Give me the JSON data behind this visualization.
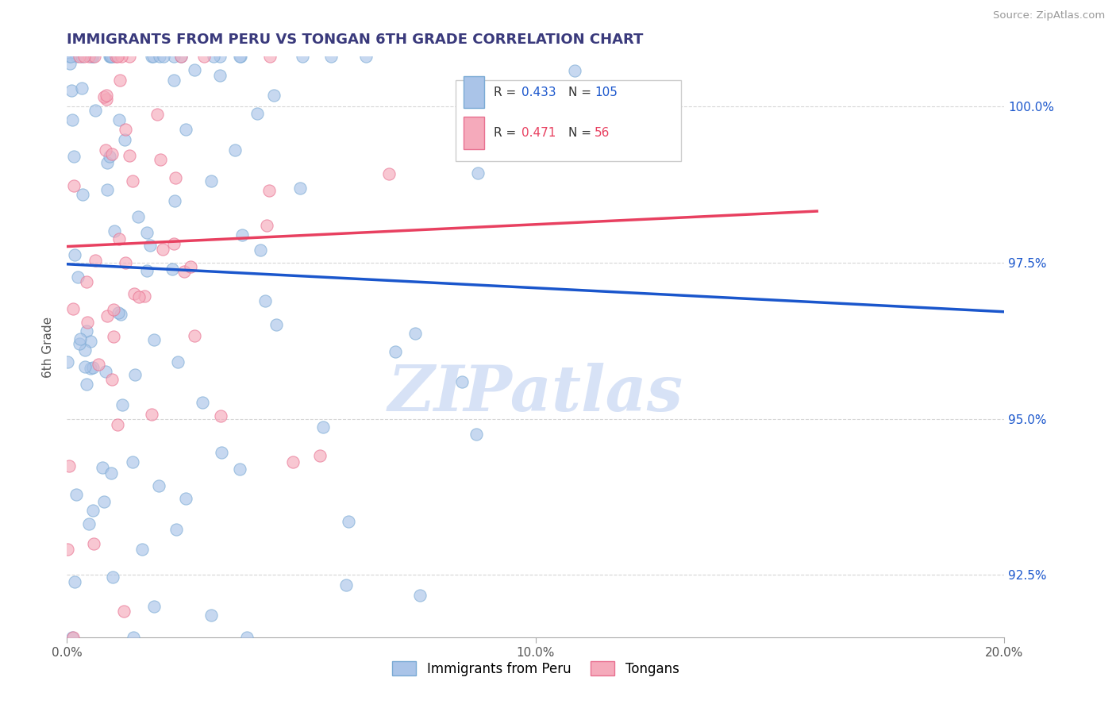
{
  "title": "IMMIGRANTS FROM PERU VS TONGAN 6TH GRADE CORRELATION CHART",
  "source": "Source: ZipAtlas.com",
  "xlabel_blue": "Immigrants from Peru",
  "xlabel_pink": "Tongans",
  "ylabel": "6th Grade",
  "x_min": 0.0,
  "x_max": 0.2,
  "y_min": 0.915,
  "y_max": 1.008,
  "blue_R": 0.433,
  "blue_N": 105,
  "pink_R": 0.471,
  "pink_N": 56,
  "blue_color": "#aac4e8",
  "pink_color": "#f5aabb",
  "blue_edge_color": "#7aaad4",
  "pink_edge_color": "#e87090",
  "blue_line_color": "#1a56cc",
  "pink_line_color": "#e84060",
  "title_color": "#3a3a7c",
  "source_color": "#999999",
  "watermark_color": "#d0ddf5",
  "y_ticks": [
    0.925,
    0.95,
    0.975,
    1.0
  ],
  "y_tick_labels": [
    "92.5%",
    "95.0%",
    "97.5%",
    "100.0%"
  ],
  "x_ticks": [
    0.0,
    0.1,
    0.2
  ],
  "x_tick_labels": [
    "0.0%",
    "10.0%",
    "20.0%"
  ]
}
